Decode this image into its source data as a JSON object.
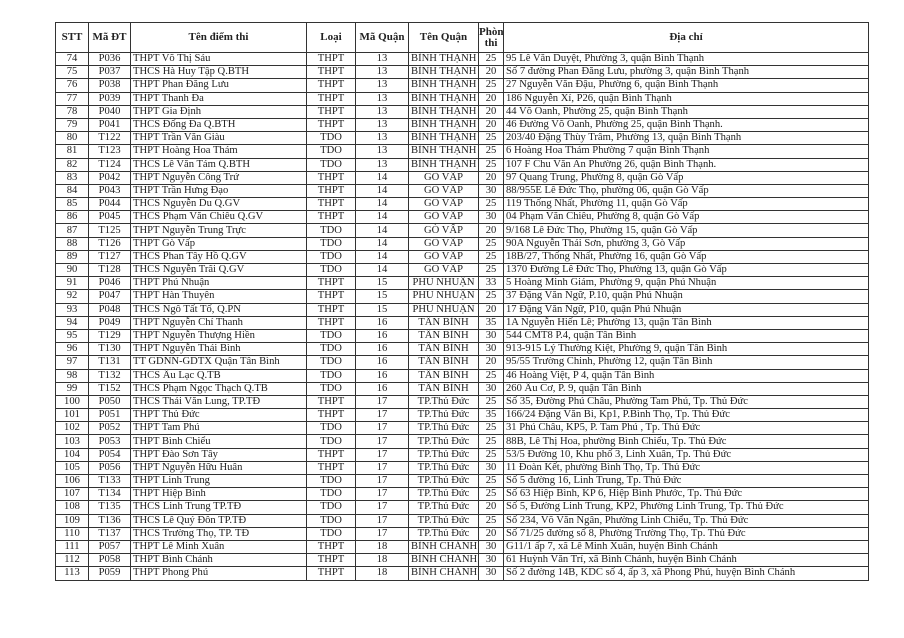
{
  "headers": [
    "STT",
    "Mã ĐT",
    "Tên điểm thi",
    "Loại",
    "Mã Quận",
    "Tên Quận",
    "Phòng thi",
    "Địa chỉ"
  ],
  "rows": [
    [
      "74",
      "P036",
      "THPT Võ Thị Sáu",
      "THPT",
      "13",
      "BÌNH THẠNH",
      "25",
      "95 Lê Văn Duyệt, Phường 3, quận Bình Thạnh"
    ],
    [
      "75",
      "P037",
      "THCS Hà Huy Tập Q.BTH",
      "THPT",
      "13",
      "BÌNH THẠNH",
      "20",
      "Số 7 đường Phan Đăng Lưu, phường 3, quận Bình Thạnh"
    ],
    [
      "76",
      "P038",
      "THPT Phan Đăng Lưu",
      "THPT",
      "13",
      "BÌNH THẠNH",
      "25",
      "27 Nguyễn Văn Đậu, Phường 6, quận Bình Thạnh"
    ],
    [
      "77",
      "P039",
      "THPT Thanh Đa",
      "THPT",
      "13",
      "BÌNH THẠNH",
      "20",
      "186 Nguyễn Xí, P26, quận Bình Thạnh"
    ],
    [
      "78",
      "P040",
      "THPT Gia Định",
      "THPT",
      "13",
      "BÌNH THẠNH",
      "20",
      "44 Võ Oanh, Phường 25, quận Bình Thạnh"
    ],
    [
      "79",
      "P041",
      "THCS Đống Đa Q.BTH",
      "THPT",
      "13",
      "BÌNH THẠNH",
      "20",
      "46 Đường Võ Oanh, Phường 25, quận Bình Thạnh."
    ],
    [
      "80",
      "T122",
      "THPT Trần Văn Giàu",
      "TDO",
      "13",
      "BÌNH THẠNH",
      "25",
      "203/40 Đặng Thùy Trâm, Phường 13, quận Bình Thạnh"
    ],
    [
      "81",
      "T123",
      "THPT Hoàng Hoa Thám",
      "TDO",
      "13",
      "BÌNH THẠNH",
      "25",
      "6 Hoàng Hoa Thám Phường 7 quận Bình Thạnh"
    ],
    [
      "82",
      "T124",
      "THCS Lê Văn Tám Q.BTH",
      "TDO",
      "13",
      "BÌNH THẠNH",
      "25",
      "107 F Chu Văn An Phường 26, quận Bình Thạnh."
    ],
    [
      "83",
      "P042",
      "THPT Nguyễn Công Trứ",
      "THPT",
      "14",
      "GÒ VẤP",
      "20",
      "97 Quang Trung, Phường 8, quận Gò Vấp"
    ],
    [
      "84",
      "P043",
      "THPT Trần Hưng Đạo",
      "THPT",
      "14",
      "GÒ VẤP",
      "30",
      "88/955E Lê Đức Thọ, phường 06, quận Gò Vấp"
    ],
    [
      "85",
      "P044",
      "THCS Nguyễn Du Q.GV",
      "THPT",
      "14",
      "GÒ VẤP",
      "25",
      "119 Thống Nhất, Phường 11, quận Gò Vấp"
    ],
    [
      "86",
      "P045",
      "THCS Phạm Văn Chiêu Q.GV",
      "THPT",
      "14",
      "GÒ VẤP",
      "30",
      "04 Phạm Văn Chiêu, Phường 8, quận Gò Vấp"
    ],
    [
      "87",
      "T125",
      "THPT Nguyễn Trung Trực",
      "TDO",
      "14",
      "GÒ VẤP",
      "20",
      "9/168 Lê Đức Thọ, Phường 15, quận Gò Vấp"
    ],
    [
      "88",
      "T126",
      "THPT Gò Vấp",
      "TDO",
      "14",
      "GÒ VẤP",
      "25",
      "90A Nguyễn Thái Sơn, phường 3, Gò Vấp"
    ],
    [
      "89",
      "T127",
      "THCS Phan Tây Hồ Q.GV",
      "TDO",
      "14",
      "GÒ VẤP",
      "25",
      "18B/27, Thống Nhất, Phường 16, quận Gò Vấp"
    ],
    [
      "90",
      "T128",
      "THCS Nguyễn Trãi Q.GV",
      "TDO",
      "14",
      "GÒ VẤP",
      "25",
      "1370 Đường Lê Đức Thọ, Phường 13, quận Gò Vấp"
    ],
    [
      "91",
      "P046",
      "THPT Phú Nhuận",
      "THPT",
      "15",
      "PHÚ NHUẬN",
      "33",
      "5 Hoàng Minh Giám, Phường 9, quận  Phú Nhuận"
    ],
    [
      "92",
      "P047",
      "THPT Hàn Thuyên",
      "THPT",
      "15",
      "PHÚ NHUẬN",
      "25",
      "37 Đặng Văn Ngữ, P.10, quận  Phú Nhuận"
    ],
    [
      "93",
      "P048",
      "THCS Ngô Tất Tố, Q.PN",
      "THPT",
      "15",
      "PHÚ NHUẬN",
      "20",
      "17 Đặng Văn Ngữ, P10, quận Phú Nhuận"
    ],
    [
      "94",
      "P049",
      "THPT Nguyễn Chí Thanh",
      "THPT",
      "16",
      "TÂN BÌNH",
      "35",
      "1A Nguyễn Hiến Lê; Phường 13, quận Tân Bình"
    ],
    [
      "95",
      "T129",
      "THPT Nguyễn Thượng Hiền",
      "TDO",
      "16",
      "TÂN BÌNH",
      "30",
      "544 CMT8 P.4, quận Tân Bình"
    ],
    [
      "96",
      "T130",
      "THPT Nguyễn Thái Bình",
      "TDO",
      "16",
      "TÂN BÌNH",
      "30",
      "913-915 Lý Thường Kiệt, Phường 9, quận Tân Bình"
    ],
    [
      "97",
      "T131",
      "TT GDNN-GDTX Quận Tân Bình",
      "TDO",
      "16",
      "TÂN BÌNH",
      "20",
      "95/55 Trường Chinh, Phường 12, quận Tân Bình"
    ],
    [
      "98",
      "T132",
      "THCS Âu Lạc Q.TB",
      "TDO",
      "16",
      "TÂN BÌNH",
      "25",
      "46 Hoàng Việt, P 4, quận Tân Bình"
    ],
    [
      "99",
      "T152",
      "THCS Phạm Ngọc Thạch Q.TB",
      "TDO",
      "16",
      "TÂN BÌNH",
      "30",
      "260 Âu Cơ, P. 9, quận Tân Bình"
    ],
    [
      "100",
      "P050",
      "THCS Thái Văn Lung, TP.TĐ",
      "THPT",
      "17",
      "TP.Thủ Đức",
      "25",
      "Số 35, Đường Phú Châu, Phường Tam Phú, Tp. Thủ Đức"
    ],
    [
      "101",
      "P051",
      "THPT Thủ Đức",
      "THPT",
      "17",
      "TP.Thủ Đức",
      "35",
      "166/24 Đặng Văn Bi, Kp1, P.Bình Thọ, Tp. Thủ Đức"
    ],
    [
      "102",
      "P052",
      "THPT Tam Phú",
      "TDO",
      "17",
      "TP.Thủ Đức",
      "25",
      "31 Phú Châu, KP5, P. Tam Phú , Tp. Thủ Đức"
    ],
    [
      "103",
      "P053",
      "THPT Bình Chiểu",
      "TDO",
      "17",
      "TP.Thủ Đức",
      "25",
      "88B, Lê Thị Hoa, phường Bình Chiểu, Tp. Thủ Đức"
    ],
    [
      "104",
      "P054",
      "THPT Đào Sơn Tây",
      "THPT",
      "17",
      "TP.Thủ Đức",
      "25",
      "53/5 Đường 10, Khu phố 3, Linh Xuân, Tp. Thủ Đức"
    ],
    [
      "105",
      "P056",
      "THPT Nguyễn Hữu Huân",
      "THPT",
      "17",
      "TP.Thủ Đức",
      "30",
      "11 Đoàn Kết, phường Bình Thọ, Tp. Thủ Đức"
    ],
    [
      "106",
      "T133",
      "THPT Linh Trung",
      "TDO",
      "17",
      "TP.Thủ Đức",
      "25",
      "Số 5 đường 16, Linh Trung, Tp. Thủ Đức"
    ],
    [
      "107",
      "T134",
      "THPT Hiệp Bình",
      "TDO",
      "17",
      "TP.Thủ Đức",
      "25",
      "Số 63 Hiệp Bình, KP 6, Hiệp Bình Phước, Tp. Thủ Đức"
    ],
    [
      "108",
      "T135",
      "THCS Linh Trung TP.TĐ",
      "TDO",
      "17",
      "TP.Thủ Đức",
      "20",
      "Số 5, Đường Linh Trung, KP2, Phường Linh Trung, Tp. Thủ Đức"
    ],
    [
      "109",
      "T136",
      "THCS Lê Quý Đôn TP.TĐ",
      "TDO",
      "17",
      "TP.Thủ Đức",
      "25",
      "Số 234, Võ Văn Ngân, Phường Linh Chiểu, Tp. Thủ Đức"
    ],
    [
      "110",
      "T137",
      "THCS Trường Thọ, TP. TĐ",
      "TDO",
      "17",
      "TP.Thủ Đức",
      "20",
      "Số 71/25 đường số 8, Phường Trường Thọ, Tp. Thủ Đức"
    ],
    [
      "111",
      "P057",
      "THPT Lê Minh Xuân",
      "THPT",
      "18",
      "BÌNH CHÁNH",
      "30",
      "G11/1 ấp 7, xã Lê Minh Xuân, huyện Bình Chánh"
    ],
    [
      "112",
      "P058",
      "THPT Bình Chánh",
      "THPT",
      "18",
      "BÌNH CHÁNH",
      "30",
      "61 Huỳnh Văn Trí, xã Bình Chánh, huyện Bình Chánh"
    ],
    [
      "113",
      "P059",
      "THPT Phong Phú",
      "THPT",
      "18",
      "BÌNH CHÁNH",
      "30",
      "Số 2 đường 14B, KDC số 4, ấp 3, xã Phong Phú, huyện Bình Chánh"
    ]
  ]
}
